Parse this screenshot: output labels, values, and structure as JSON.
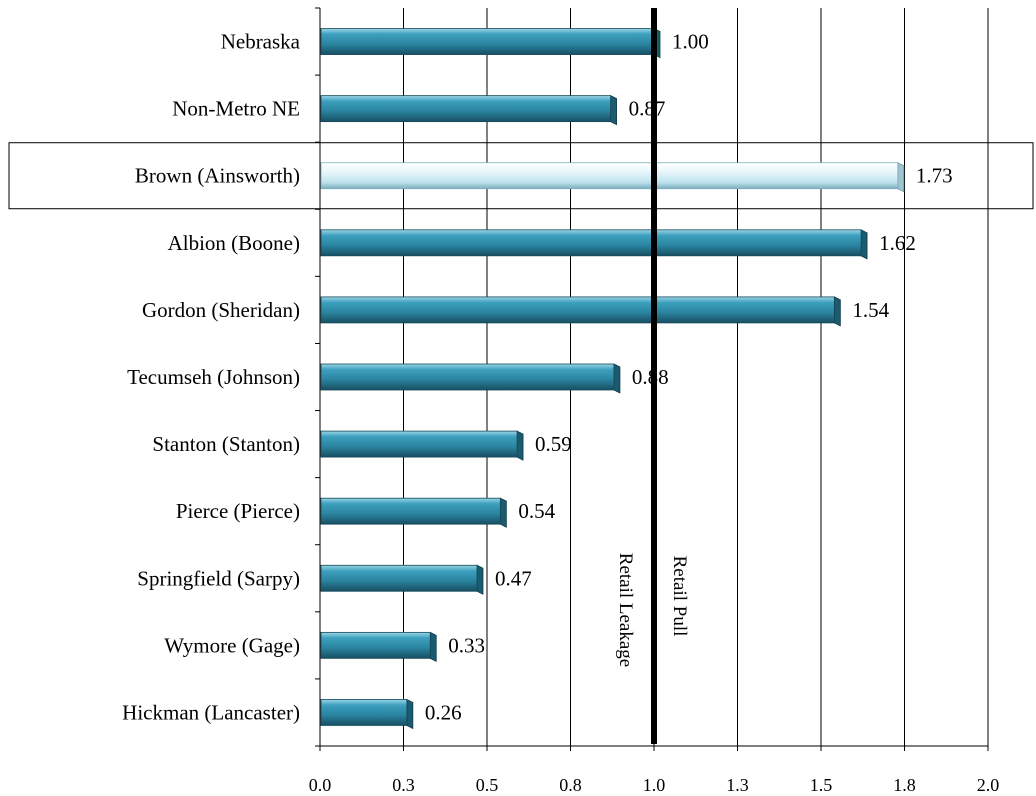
{
  "chart_data": {
    "type": "bar",
    "orientation": "horizontal",
    "categories": [
      "Nebraska",
      "Non-Metro NE",
      "Brown (Ainsworth)",
      "Albion (Boone)",
      "Gordon (Sheridan)",
      "Tecumseh (Johnson)",
      "Stanton (Stanton)",
      "Pierce (Pierce)",
      "Springfield (Sarpy)",
      "Wymore (Gage)",
      "Hickman (Lancaster)"
    ],
    "values": [
      1.0,
      0.87,
      1.73,
      1.62,
      1.54,
      0.88,
      0.59,
      0.54,
      0.47,
      0.33,
      0.26
    ],
    "value_labels": [
      "1.00",
      "0.87",
      "1.73",
      "1.62",
      "1.54",
      "0.88",
      "0.59",
      "0.54",
      "0.47",
      "0.33",
      "0.26"
    ],
    "highlighted_category": "Brown (Ainsworth)",
    "xlim": [
      0,
      2.0
    ],
    "x_ticks": [
      0,
      0.25,
      0.5,
      0.75,
      1.0,
      1.25,
      1.5,
      1.75,
      2.0
    ],
    "x_tick_labels": [
      "0.0",
      "0.3",
      "0.5",
      "0.8",
      "1.0",
      "1.3",
      "1.5",
      "1.8",
      "2.0"
    ],
    "reference_line": 1.0,
    "annotations": {
      "left_of_line": "Retail Leakage",
      "right_of_line": "Retail Pull"
    },
    "grid": "vertical",
    "title": "",
    "xlabel": "",
    "ylabel": "",
    "colors": {
      "bar": "#2f8fac",
      "bar_dark": "#1a5b70",
      "bar_light": "#8fd0e2",
      "highlight_bar": "#e9f7fc",
      "highlight_bar_edge": "#7eaebd",
      "reference_line": "#000000",
      "grid": "#000000"
    }
  }
}
